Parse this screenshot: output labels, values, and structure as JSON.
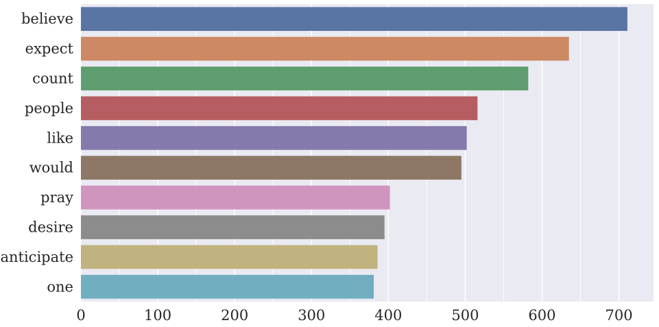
{
  "chart_data": {
    "type": "bar",
    "orientation": "horizontal",
    "title": "",
    "xlabel": "",
    "ylabel": "",
    "categories": [
      "believe",
      "expect",
      "count",
      "people",
      "like",
      "would",
      "pray",
      "desire",
      "anticipate",
      "one"
    ],
    "values": [
      711,
      635,
      582,
      516,
      502,
      495,
      402,
      395,
      386,
      381
    ],
    "colors": [
      "#5875a4",
      "#cc8963",
      "#5f9e6e",
      "#b55d60",
      "#857aab",
      "#8d7866",
      "#d095bf",
      "#8c8c8c",
      "#c1b37f",
      "#71aec0"
    ],
    "xlim": [
      0,
      745
    ],
    "xticks": [
      0,
      100,
      200,
      300,
      400,
      500,
      600,
      700
    ],
    "xtick_labels": [
      "0",
      "100",
      "200",
      "300",
      "400",
      "500",
      "600",
      "700"
    ],
    "grid": true,
    "background": "#eaeaf2",
    "grid_color": "#ffffff"
  }
}
